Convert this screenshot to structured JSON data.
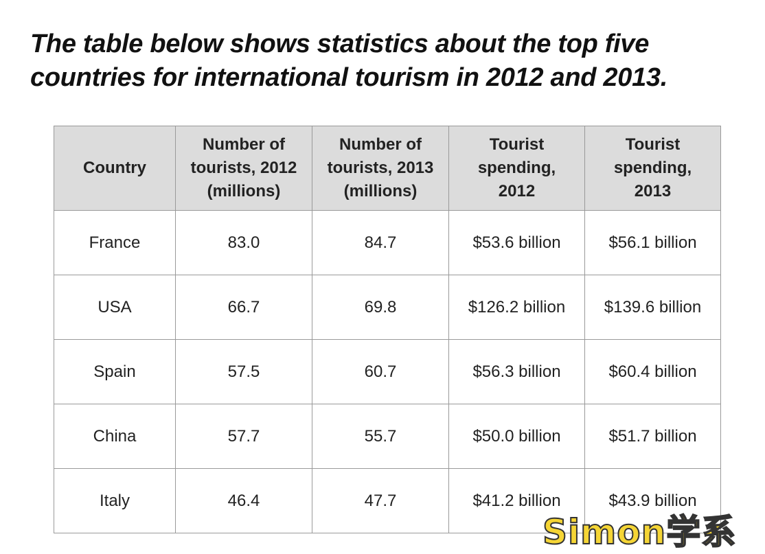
{
  "title": "The table below shows statistics about the top five countries for international tourism in 2012 and 2013.",
  "table": {
    "headers": [
      "Country",
      "Number of tourists, 2012 (millions)",
      "Number of tourists, 2013 (millions)",
      "Tourist spending, 2012",
      "Tourist spending, 2013"
    ],
    "rows": [
      [
        "France",
        "83.0",
        "84.7",
        "$53.6 billion",
        "$56.1 billion"
      ],
      [
        "USA",
        "66.7",
        "69.8",
        "$126.2 billion",
        "$139.6 billion"
      ],
      [
        "Spain",
        "57.5",
        "60.7",
        "$56.3 billion",
        "$60.4 billion"
      ],
      [
        "China",
        "57.7",
        "55.7",
        "$50.0 billion",
        "$51.7 billion"
      ],
      [
        "Italy",
        "46.4",
        "47.7",
        "$41.2 billion",
        "$43.9 billion"
      ]
    ]
  },
  "watermark": "Simon学系"
}
